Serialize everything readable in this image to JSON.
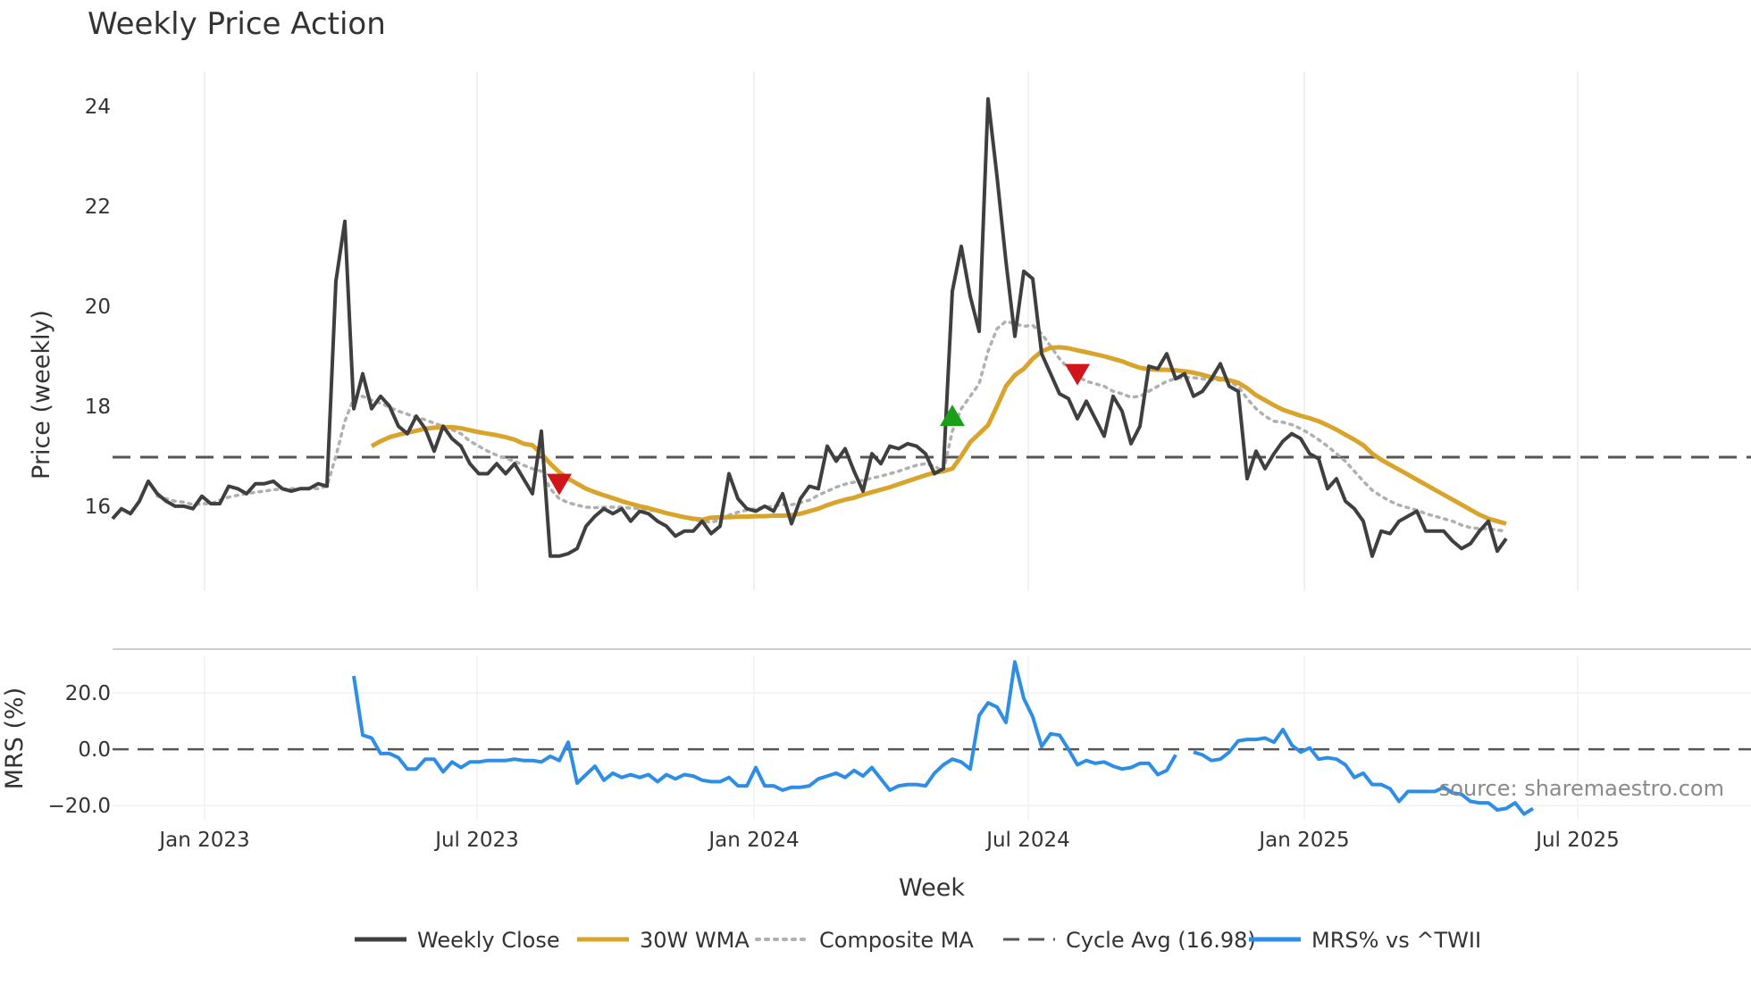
{
  "chart_data": {
    "type": "line",
    "title": "Weekly Price Action",
    "xlabel": "Week",
    "x_ticks": [
      "Jan 2023",
      "Jul 2023",
      "Jan 2024",
      "Jul 2024",
      "Jan 2025",
      "Jul 2025"
    ],
    "price_panel": {
      "ylabel": "Price (weekly)",
      "ylim": [
        14.3,
        24.7
      ],
      "y_ticks": [
        "16",
        "18",
        "20",
        "22",
        "24"
      ],
      "weekly_close": [
        15.75,
        15.95,
        15.85,
        16.1,
        16.5,
        16.25,
        16.1,
        16.0,
        16.0,
        15.95,
        16.2,
        16.05,
        16.05,
        16.4,
        16.35,
        16.25,
        16.45,
        16.45,
        16.5,
        16.35,
        16.3,
        16.35,
        16.35,
        16.45,
        16.4,
        20.5,
        21.7,
        17.95,
        18.65,
        17.95,
        18.2,
        18.0,
        17.6,
        17.45,
        17.8,
        17.55,
        17.1,
        17.6,
        17.35,
        17.2,
        16.85,
        16.65,
        16.65,
        16.85,
        16.65,
        16.85,
        16.55,
        16.25,
        17.5,
        15.0,
        15.0,
        15.05,
        15.15,
        15.6,
        15.8,
        15.95,
        15.85,
        15.95,
        15.7,
        15.9,
        15.85,
        15.7,
        15.6,
        15.4,
        15.5,
        15.5,
        15.7,
        15.45,
        15.6,
        16.65,
        16.15,
        15.95,
        15.9,
        16.0,
        15.9,
        16.25,
        15.65,
        16.15,
        16.4,
        16.35,
        17.2,
        16.9,
        17.15,
        16.7,
        16.3,
        17.05,
        16.85,
        17.2,
        17.15,
        17.25,
        17.2,
        17.05,
        16.65,
        16.75,
        20.3,
        21.2,
        20.2,
        19.5,
        24.15,
        22.6,
        20.9,
        19.4,
        20.7,
        20.55,
        19.05,
        18.65,
        18.25,
        18.15,
        17.75,
        18.1,
        17.75,
        17.4,
        18.2,
        17.9,
        17.25,
        17.6,
        18.8,
        18.75,
        19.05,
        18.55,
        18.65,
        18.2,
        18.3,
        18.55,
        18.85,
        18.4,
        18.3,
        16.55,
        17.1,
        16.75,
        17.05,
        17.3,
        17.45,
        17.35,
        17.05,
        16.95,
        16.35,
        16.55,
        16.1,
        15.95,
        15.7,
        15.0,
        15.5,
        15.45,
        15.7,
        15.8,
        15.9,
        15.5,
        15.5,
        15.5,
        15.3,
        15.15,
        15.25,
        15.5,
        15.7,
        15.1,
        15.35
      ],
      "wma_30w": [
        null,
        null,
        null,
        null,
        null,
        null,
        null,
        null,
        null,
        null,
        null,
        null,
        null,
        null,
        null,
        null,
        null,
        null,
        null,
        null,
        null,
        null,
        null,
        null,
        null,
        null,
        null,
        null,
        null,
        17.2,
        17.3,
        17.38,
        17.43,
        17.47,
        17.51,
        17.55,
        17.57,
        17.58,
        17.58,
        17.56,
        17.52,
        17.48,
        17.45,
        17.42,
        17.38,
        17.33,
        17.25,
        17.22,
        17.05,
        16.85,
        16.68,
        16.55,
        16.45,
        16.35,
        16.28,
        16.22,
        16.16,
        16.1,
        16.05,
        16.0,
        15.96,
        15.91,
        15.86,
        15.82,
        15.78,
        15.75,
        15.73,
        15.77,
        15.78,
        15.78,
        15.79,
        15.79,
        15.8,
        15.8,
        15.81,
        15.81,
        15.82,
        15.85,
        15.9,
        15.95,
        16.02,
        16.08,
        16.13,
        16.17,
        16.23,
        16.28,
        16.33,
        16.38,
        16.44,
        16.5,
        16.56,
        16.62,
        16.67,
        16.7,
        16.75,
        17.0,
        17.28,
        17.45,
        17.62,
        18.0,
        18.4,
        18.62,
        18.75,
        18.95,
        19.1,
        19.17,
        19.18,
        19.16,
        19.12,
        19.08,
        19.04,
        19.0,
        18.95,
        18.9,
        18.83,
        18.77,
        18.74,
        18.73,
        18.73,
        18.72,
        18.7,
        18.67,
        18.63,
        18.58,
        18.55,
        18.52,
        18.47,
        18.36,
        18.22,
        18.12,
        18.02,
        17.93,
        17.87,
        17.81,
        17.76,
        17.7,
        17.62,
        17.53,
        17.43,
        17.33,
        17.22,
        17.05,
        16.93,
        16.83,
        16.73,
        16.63,
        16.53,
        16.43,
        16.33,
        16.23,
        16.13,
        16.03,
        15.93,
        15.83,
        15.75,
        15.7,
        15.65
      ],
      "composite_ma": [
        null,
        null,
        null,
        null,
        null,
        16.2,
        16.15,
        16.1,
        16.08,
        16.03,
        16.05,
        16.05,
        16.12,
        16.18,
        16.22,
        16.25,
        16.28,
        16.3,
        16.33,
        16.34,
        16.35,
        16.35,
        16.36,
        16.35,
        16.4,
        17.0,
        17.7,
        18.15,
        18.2,
        18.12,
        18.06,
        17.98,
        17.9,
        17.84,
        17.78,
        17.73,
        17.66,
        17.6,
        17.53,
        17.45,
        17.3,
        17.2,
        17.1,
        17.02,
        16.96,
        16.9,
        16.82,
        16.75,
        16.7,
        16.35,
        16.15,
        16.07,
        16.02,
        15.98,
        15.97,
        15.98,
        15.98,
        15.98,
        15.96,
        15.95,
        15.93,
        15.9,
        15.87,
        15.82,
        15.77,
        15.73,
        15.7,
        15.68,
        15.72,
        15.82,
        15.88,
        15.92,
        15.95,
        15.98,
        16.0,
        16.03,
        16.03,
        16.07,
        16.12,
        16.22,
        16.3,
        16.38,
        16.44,
        16.48,
        16.52,
        16.56,
        16.6,
        16.65,
        16.7,
        16.76,
        16.82,
        16.85,
        16.8,
        16.7,
        17.5,
        17.95,
        18.2,
        18.45,
        19.1,
        19.55,
        19.7,
        19.65,
        19.6,
        19.62,
        19.45,
        19.2,
        18.95,
        18.75,
        18.6,
        18.5,
        18.45,
        18.4,
        18.3,
        18.25,
        18.18,
        18.2,
        18.3,
        18.4,
        18.5,
        18.55,
        18.58,
        18.57,
        18.55,
        18.53,
        18.52,
        18.5,
        18.4,
        18.15,
        17.95,
        17.8,
        17.7,
        17.68,
        17.63,
        17.55,
        17.45,
        17.33,
        17.2,
        17.05,
        16.9,
        16.7,
        16.5,
        16.32,
        16.2,
        16.1,
        16.02,
        15.97,
        15.92,
        15.85,
        15.8,
        15.75,
        15.7,
        15.62,
        15.57,
        15.55,
        15.55,
        15.52,
        15.5
      ],
      "cycle_avg": 16.98,
      "signals_up": [
        {
          "week_index": 94,
          "price": 17.8
        }
      ],
      "signals_down": [
        {
          "week_index": 50,
          "price": 16.45
        },
        {
          "week_index": 108,
          "price": 18.65
        }
      ]
    },
    "mrs_panel": {
      "ylabel": "MRS (%)",
      "ylim": [
        -25.0,
        33.0
      ],
      "y_ticks": [
        "20.0",
        "0.0",
        "−20.0"
      ],
      "reference_level": 0.0,
      "mrs_vs_twii": [
        null,
        null,
        null,
        null,
        null,
        null,
        null,
        null,
        null,
        null,
        null,
        null,
        null,
        null,
        null,
        null,
        null,
        null,
        null,
        null,
        null,
        null,
        null,
        null,
        null,
        null,
        null,
        26.0,
        5.0,
        4.0,
        -1.5,
        -1.5,
        -3.0,
        -7.0,
        -7.0,
        -3.5,
        -3.5,
        -8.0,
        -4.5,
        -6.5,
        -4.5,
        -4.5,
        -4.0,
        -4.0,
        -4.0,
        -3.5,
        -4.0,
        -4.0,
        -4.5,
        -2.5,
        -4.0,
        2.5,
        -12.0,
        -9.0,
        -6.0,
        -11.0,
        -8.5,
        -10.0,
        -9.0,
        -10.0,
        -9.0,
        -11.5,
        -9.0,
        -10.5,
        -9.0,
        -9.5,
        -11.0,
        -11.5,
        -11.5,
        -10.0,
        -13.0,
        -13.0,
        -6.5,
        -13.0,
        -13.0,
        -14.5,
        -13.5,
        -13.5,
        -13.0,
        -10.5,
        -9.5,
        -8.5,
        -10.0,
        -7.5,
        -9.5,
        -6.5,
        -10.5,
        -14.5,
        -13.0,
        -12.5,
        -12.5,
        -13.0,
        -8.5,
        -5.5,
        -3.5,
        -4.5,
        -7.0,
        12.0,
        16.5,
        15.0,
        9.5,
        31.0,
        18.0,
        11.5,
        1.0,
        5.5,
        5.0,
        0.0,
        -5.5,
        -4.0,
        -5.0,
        -4.5,
        -6.0,
        -7.0,
        -6.5,
        -5.0,
        -5.0,
        -9.0,
        -7.5,
        -2.0,
        null,
        -1.0,
        -2.0,
        -4.0,
        -3.5,
        -1.0,
        3.0,
        3.5,
        3.5,
        4.0,
        2.5,
        7.0,
        1.5,
        -1.0,
        0.5,
        -3.5,
        -3.0,
        -3.5,
        -5.5,
        -10.0,
        -8.5,
        -12.5,
        -12.5,
        -14.0,
        -18.5,
        -15.0,
        -15.0,
        -15.0,
        -15.0,
        -13.5,
        -15.5,
        -16.0,
        -18.5,
        -19.0,
        -19.0,
        -21.5,
        -21.0,
        -19.0,
        -23.0,
        -21.0
      ]
    },
    "legend": [
      {
        "label": "Weekly Close",
        "style": "solid",
        "color": "#3f3f3f"
      },
      {
        "label": "30W WMA",
        "style": "solid",
        "color": "#d9a42c"
      },
      {
        "label": "Composite MA",
        "style": "dotted",
        "color": "#b0b0b0"
      },
      {
        "label": "Cycle Avg (16.98)",
        "style": "dashed",
        "color": "#555555"
      },
      {
        "label": "MRS% vs ^TWII",
        "style": "solid",
        "color": "#2e8ee6"
      }
    ],
    "source_note": "source: sharemaestro.com",
    "colors": {
      "close": "#3f3f3f",
      "wma": "#d9a42c",
      "composite": "#b0b0b0",
      "cycle": "#555555",
      "mrs": "#2e8ee6",
      "signal_up": "#1a9f1a",
      "signal_down": "#d0161b"
    }
  }
}
